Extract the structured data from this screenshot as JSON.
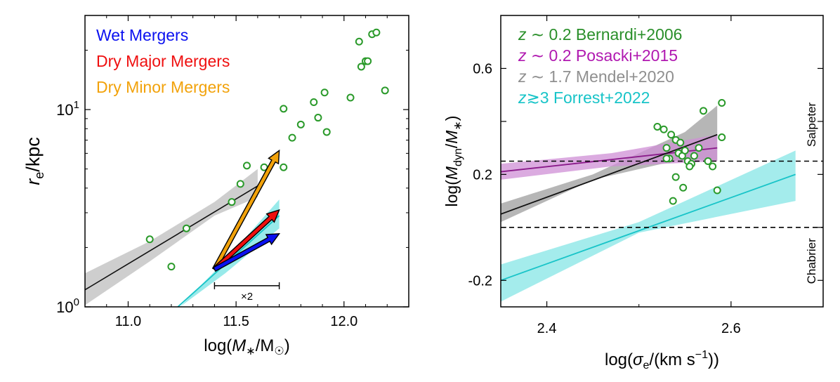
{
  "chart_data": [
    {
      "type": "scatter",
      "xlabel": "log(M∗/M☉)",
      "ylabel": "re/kpc",
      "xlim": [
        10.8,
        12.3
      ],
      "ylim": [
        1,
        30
      ],
      "yscale": "log",
      "xticks": [
        11.0,
        11.5,
        12.0
      ],
      "xtick_labels": [
        "11.0",
        "11.5",
        "12.0"
      ],
      "ytick_labels": [
        {
          "base": "10",
          "exp": "0",
          "value": 1
        },
        {
          "base": "10",
          "exp": "1",
          "value": 10
        }
      ],
      "legend": [
        "Wet Mergers",
        "Dry Major Mergers",
        "Dry Minor Mergers"
      ],
      "legend_colors": [
        "#0a10f0",
        "#ef0f0f",
        "#f2a20a"
      ],
      "colors": {
        "data": "#2a9a2a",
        "fit_black": "#111111",
        "band_black": "#bdbdbd",
        "fit_cyan": "#18c4c8",
        "band_cyan": "#86e6e6"
      },
      "annotation": "×2",
      "scale_bar": [
        11.4,
        11.7
      ],
      "scale_bar_y": 1.28,
      "arrows": [
        {
          "label": "Dry Minor Mergers",
          "color": "#f2a20a",
          "from": [
            11.4,
            1.55
          ],
          "to": [
            11.7,
            6.2
          ]
        },
        {
          "label": "Dry Major Mergers",
          "color": "#ef0f0f",
          "from": [
            11.4,
            1.55
          ],
          "to": [
            11.7,
            3.1
          ]
        },
        {
          "label": "Wet Mergers",
          "color": "#0a10f0",
          "from": [
            11.4,
            1.55
          ],
          "to": [
            11.7,
            2.35
          ]
        }
      ],
      "fit_black": {
        "x": [
          10.8,
          11.6
        ],
        "y": [
          1.22,
          4.1
        ]
      },
      "band_black": {
        "x": [
          10.8,
          11.1,
          11.4,
          11.6
        ],
        "lo": [
          1.02,
          1.7,
          2.9,
          3.6
        ],
        "hi": [
          1.48,
          2.15,
          3.4,
          5.0
        ]
      },
      "fit_cyan": {
        "x": [
          11.23,
          11.7
        ],
        "y": [
          1.0,
          2.9
        ]
      },
      "band_cyan": {
        "x": [
          11.24,
          11.45,
          11.7
        ],
        "lo": [
          1.0,
          1.48,
          2.5
        ],
        "hi": [
          1.0,
          1.72,
          3.5
        ]
      },
      "points": {
        "x": [
          11.1,
          11.2,
          11.27,
          11.48,
          11.52,
          11.55,
          11.63,
          11.72,
          11.72,
          11.76,
          11.8,
          11.86,
          11.88,
          11.91,
          11.92,
          12.03,
          12.07,
          12.08,
          12.1,
          12.11,
          12.13,
          12.15,
          12.19
        ],
        "y": [
          2.2,
          1.6,
          2.5,
          3.4,
          4.2,
          5.2,
          5.1,
          10.1,
          5.1,
          7.2,
          8.4,
          10.9,
          9.1,
          12.2,
          7.7,
          11.5,
          22.1,
          16.5,
          17.6,
          17.6,
          24.1,
          24.6,
          12.5
        ]
      }
    },
    {
      "type": "scatter",
      "xlabel": "log(σe/(km s−1))",
      "ylabel": "log(Mdyn/M∗)",
      "xlim": [
        2.35,
        2.7
      ],
      "ylim": [
        -0.3,
        0.8
      ],
      "xticks": [
        2.4,
        2.6
      ],
      "xtick_labels": [
        "2.4",
        "2.6"
      ],
      "yticks": [
        -0.2,
        0.2,
        0.6
      ],
      "ytick_labels": [
        "-0.2",
        "0.2",
        "0.6"
      ],
      "legend": [
        {
          "z": "z",
          "rel": " ∼ 0.2",
          "ref": " Bernardi+2006",
          "color": "#2a8f2a"
        },
        {
          "z": "z",
          "rel": " ∼ 0.2",
          "ref": " Posacki+2015",
          "color": "#b018b0"
        },
        {
          "z": "z",
          "rel": " ∼ 1.7",
          "ref": " Mendel+2020",
          "color": "#8f8f8f"
        },
        {
          "z": "z",
          "rel": "≳3",
          "ref": " Forrest+2022",
          "color": "#18c4c8"
        }
      ],
      "reference_lines": [
        {
          "label": "Salpeter",
          "y": 0.25
        },
        {
          "label": "Chabrier",
          "y": 0.0
        }
      ],
      "colors": {
        "data": "#2a9a2a",
        "fit_black": "#111111",
        "band_black": "#8f8f8f",
        "fit_purple": "#8a1a8a",
        "band_purple": "#cf8fd6",
        "fit_cyan": "#18c4c8",
        "band_cyan": "#86e6e6"
      },
      "fit_black": {
        "x": [
          2.35,
          2.585
        ],
        "y": [
          0.05,
          0.35
        ]
      },
      "band_black": {
        "x": [
          2.35,
          2.45,
          2.55,
          2.585
        ],
        "lo": [
          0.02,
          0.18,
          0.26,
          0.25
        ],
        "hi": [
          0.09,
          0.2,
          0.36,
          0.46
        ]
      },
      "fit_purple": {
        "x": [
          2.35,
          2.585
        ],
        "y": [
          0.21,
          0.3
        ]
      },
      "band_purple": {
        "x": [
          2.35,
          2.47,
          2.585
        ],
        "lo": [
          0.18,
          0.23,
          0.25
        ],
        "hi": [
          0.24,
          0.28,
          0.35
        ]
      },
      "fit_cyan": {
        "x": [
          2.35,
          2.67
        ],
        "y": [
          -0.2,
          0.2
        ]
      },
      "band_cyan": {
        "x": [
          2.35,
          2.5,
          2.67
        ],
        "lo": [
          -0.28,
          -0.02,
          0.1
        ],
        "hi": [
          -0.14,
          0.02,
          0.29
        ]
      },
      "points": {
        "x": [
          2.52,
          2.527,
          2.53,
          2.533,
          2.535,
          2.54,
          2.543,
          2.545,
          2.547,
          2.55,
          2.553,
          2.557,
          2.56,
          2.565,
          2.57,
          2.575,
          2.58,
          2.585,
          2.59,
          2.59,
          2.53,
          2.54,
          2.555,
          2.537,
          2.548
        ],
        "y": [
          0.38,
          0.37,
          0.3,
          0.26,
          0.35,
          0.33,
          0.28,
          0.32,
          0.27,
          0.29,
          0.25,
          0.24,
          0.27,
          0.3,
          0.44,
          0.25,
          0.23,
          0.14,
          0.47,
          0.34,
          0.26,
          0.19,
          0.23,
          0.1,
          0.15
        ]
      }
    }
  ]
}
